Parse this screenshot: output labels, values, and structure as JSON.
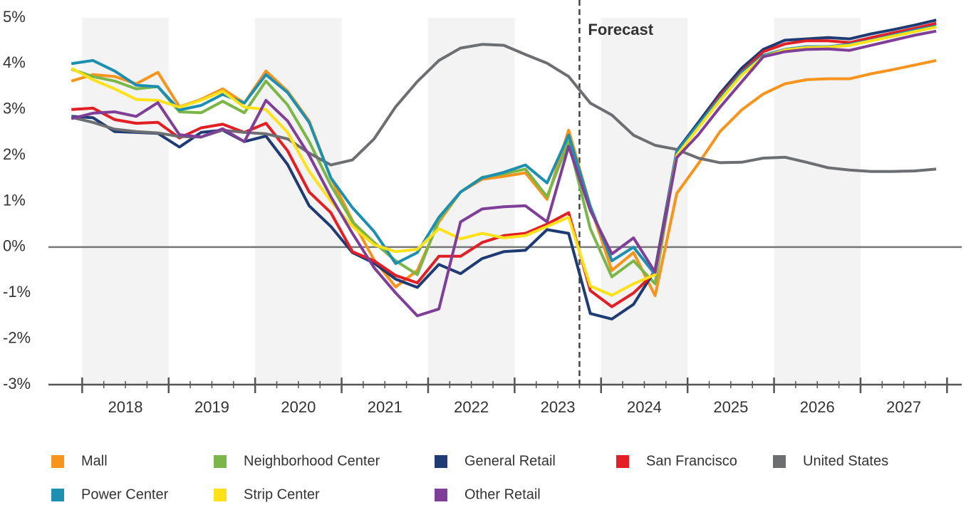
{
  "chart_data": {
    "type": "line",
    "x": [
      2017.875,
      2018.125,
      2018.375,
      2018.625,
      2018.875,
      2019.125,
      2019.375,
      2019.625,
      2019.875,
      2020.125,
      2020.375,
      2020.625,
      2020.875,
      2021.125,
      2021.375,
      2021.625,
      2021.875,
      2022.125,
      2022.375,
      2022.625,
      2022.875,
      2023.125,
      2023.375,
      2023.625,
      2023.875,
      2024.125,
      2024.375,
      2024.625,
      2024.875,
      2025.125,
      2025.375,
      2025.625,
      2025.875,
      2026.125,
      2026.375,
      2026.625,
      2026.875,
      2027.125,
      2027.375,
      2027.625,
      2027.875
    ],
    "xlim": [
      2017.61,
      2028.17
    ],
    "xticks": [
      {
        "value": 2018.5,
        "label": "2018"
      },
      {
        "value": 2019.5,
        "label": "2019"
      },
      {
        "value": 2020.5,
        "label": "2020"
      },
      {
        "value": 2021.5,
        "label": "2021"
      },
      {
        "value": 2022.5,
        "label": "2022"
      },
      {
        "value": 2023.5,
        "label": "2023"
      },
      {
        "value": 2024.5,
        "label": "2024"
      },
      {
        "value": 2025.5,
        "label": "2025"
      },
      {
        "value": 2026.5,
        "label": "2026"
      },
      {
        "value": 2027.5,
        "label": "2027"
      }
    ],
    "ylim": [
      -3,
      5
    ],
    "yticks": [
      {
        "value": -3,
        "label": "-3%"
      },
      {
        "value": -2,
        "label": "-2%"
      },
      {
        "value": -1,
        "label": "-1%"
      },
      {
        "value": 0,
        "label": "0%"
      },
      {
        "value": 1,
        "label": "1%"
      },
      {
        "value": 2,
        "label": "2%"
      },
      {
        "value": 3,
        "label": "3%"
      },
      {
        "value": 4,
        "label": "4%"
      },
      {
        "value": 5,
        "label": "5%"
      }
    ],
    "alternating_bands": true,
    "forecast": {
      "x": 2023.75,
      "label": "Forecast"
    },
    "series": [
      {
        "name": "Mall",
        "color": "#f7941d",
        "values": [
          3.62,
          3.76,
          3.72,
          3.56,
          3.81,
          3.06,
          3.22,
          3.45,
          3.14,
          3.84,
          3.4,
          2.75,
          1.51,
          0.58,
          -0.28,
          -0.87,
          -0.51,
          0.55,
          1.2,
          1.48,
          1.54,
          1.62,
          1.04,
          2.55,
          0.89,
          -0.51,
          -0.12,
          -1.06,
          1.17,
          1.82,
          2.52,
          2.99,
          3.34,
          3.56,
          3.65,
          3.67,
          3.67,
          3.78,
          3.87,
          3.97,
          4.07
        ]
      },
      {
        "name": "Neighborhood Center",
        "color": "#7ab648",
        "values": [
          3.88,
          3.72,
          3.62,
          3.45,
          3.5,
          2.95,
          2.93,
          3.18,
          2.93,
          3.62,
          3.1,
          2.3,
          1.35,
          0.55,
          0.1,
          -0.3,
          -0.6,
          0.6,
          1.2,
          1.52,
          1.6,
          1.7,
          1.1,
          2.3,
          0.4,
          -0.65,
          -0.3,
          -0.8,
          2.05,
          2.6,
          3.25,
          3.8,
          4.15,
          4.3,
          4.35,
          4.36,
          4.4,
          4.5,
          4.6,
          4.7,
          4.8
        ]
      },
      {
        "name": "General Retail",
        "color": "#1f3b73",
        "values": [
          2.85,
          2.82,
          2.52,
          2.5,
          2.48,
          2.18,
          2.5,
          2.55,
          2.3,
          2.42,
          1.8,
          0.9,
          0.45,
          -0.12,
          -0.35,
          -0.7,
          -0.88,
          -0.38,
          -0.58,
          -0.25,
          -0.1,
          -0.07,
          0.38,
          0.3,
          -1.45,
          -1.57,
          -1.25,
          -0.5,
          2.1,
          2.72,
          3.35,
          3.9,
          4.31,
          4.51,
          4.54,
          4.57,
          4.54,
          4.65,
          4.74,
          4.84,
          4.95
        ]
      },
      {
        "name": "San Francisco",
        "color": "#e31e24",
        "values": [
          3.0,
          3.03,
          2.78,
          2.7,
          2.72,
          2.38,
          2.6,
          2.68,
          2.5,
          2.7,
          2.1,
          1.2,
          0.75,
          -0.1,
          -0.3,
          -0.62,
          -0.78,
          -0.2,
          -0.2,
          0.1,
          0.25,
          0.3,
          0.5,
          0.75,
          -0.95,
          -1.3,
          -1.0,
          -0.55,
          2.05,
          2.65,
          3.3,
          3.82,
          4.26,
          4.43,
          4.5,
          4.5,
          4.46,
          4.57,
          4.67,
          4.77,
          4.88
        ]
      },
      {
        "name": "United States",
        "color": "#6d6e71",
        "values": [
          2.83,
          2.72,
          2.57,
          2.52,
          2.49,
          2.41,
          2.4,
          2.55,
          2.5,
          2.47,
          2.36,
          2.05,
          1.79,
          1.9,
          2.36,
          3.06,
          3.61,
          4.07,
          4.34,
          4.42,
          4.4,
          4.2,
          4.01,
          3.72,
          3.14,
          2.88,
          2.44,
          2.22,
          2.13,
          1.94,
          1.84,
          1.85,
          1.94,
          1.96,
          1.85,
          1.73,
          1.68,
          1.65,
          1.65,
          1.66,
          1.7
        ]
      },
      {
        "name": "Power Center",
        "color": "#1d8fb0",
        "values": [
          4.0,
          4.07,
          3.84,
          3.53,
          3.5,
          2.99,
          3.09,
          3.33,
          3.14,
          3.76,
          3.37,
          2.72,
          1.51,
          0.86,
          0.34,
          -0.36,
          -0.12,
          0.65,
          1.2,
          1.51,
          1.63,
          1.79,
          1.4,
          2.44,
          0.89,
          -0.3,
          0.0,
          -0.6,
          2.08,
          2.67,
          3.25,
          3.8,
          4.18,
          4.31,
          4.37,
          4.37,
          4.42,
          4.51,
          4.62,
          4.73,
          4.82
        ]
      },
      {
        "name": "Strip Center",
        "color": "#ffe11a",
        "values": [
          3.9,
          3.65,
          3.45,
          3.22,
          3.2,
          3.05,
          3.2,
          3.4,
          3.05,
          3.0,
          2.5,
          1.65,
          1.0,
          0.45,
          0.05,
          -0.1,
          -0.05,
          0.4,
          0.18,
          0.3,
          0.2,
          0.25,
          0.45,
          0.65,
          -0.85,
          -1.05,
          -0.8,
          -0.6,
          2.0,
          2.6,
          3.2,
          3.75,
          4.15,
          4.3,
          4.35,
          4.36,
          4.4,
          4.5,
          4.6,
          4.7,
          4.8
        ]
      },
      {
        "name": "Other Retail",
        "color": "#7f3f98",
        "values": [
          2.8,
          2.92,
          2.95,
          2.85,
          3.15,
          2.45,
          2.4,
          2.58,
          2.3,
          3.2,
          2.75,
          2.0,
          1.1,
          0.3,
          -0.45,
          -1.0,
          -1.5,
          -1.35,
          0.55,
          0.83,
          0.88,
          0.9,
          0.55,
          2.2,
          0.8,
          -0.15,
          0.2,
          -0.55,
          1.95,
          2.45,
          3.05,
          3.6,
          4.15,
          4.26,
          4.31,
          4.32,
          4.29,
          4.4,
          4.51,
          4.62,
          4.71
        ]
      }
    ]
  }
}
